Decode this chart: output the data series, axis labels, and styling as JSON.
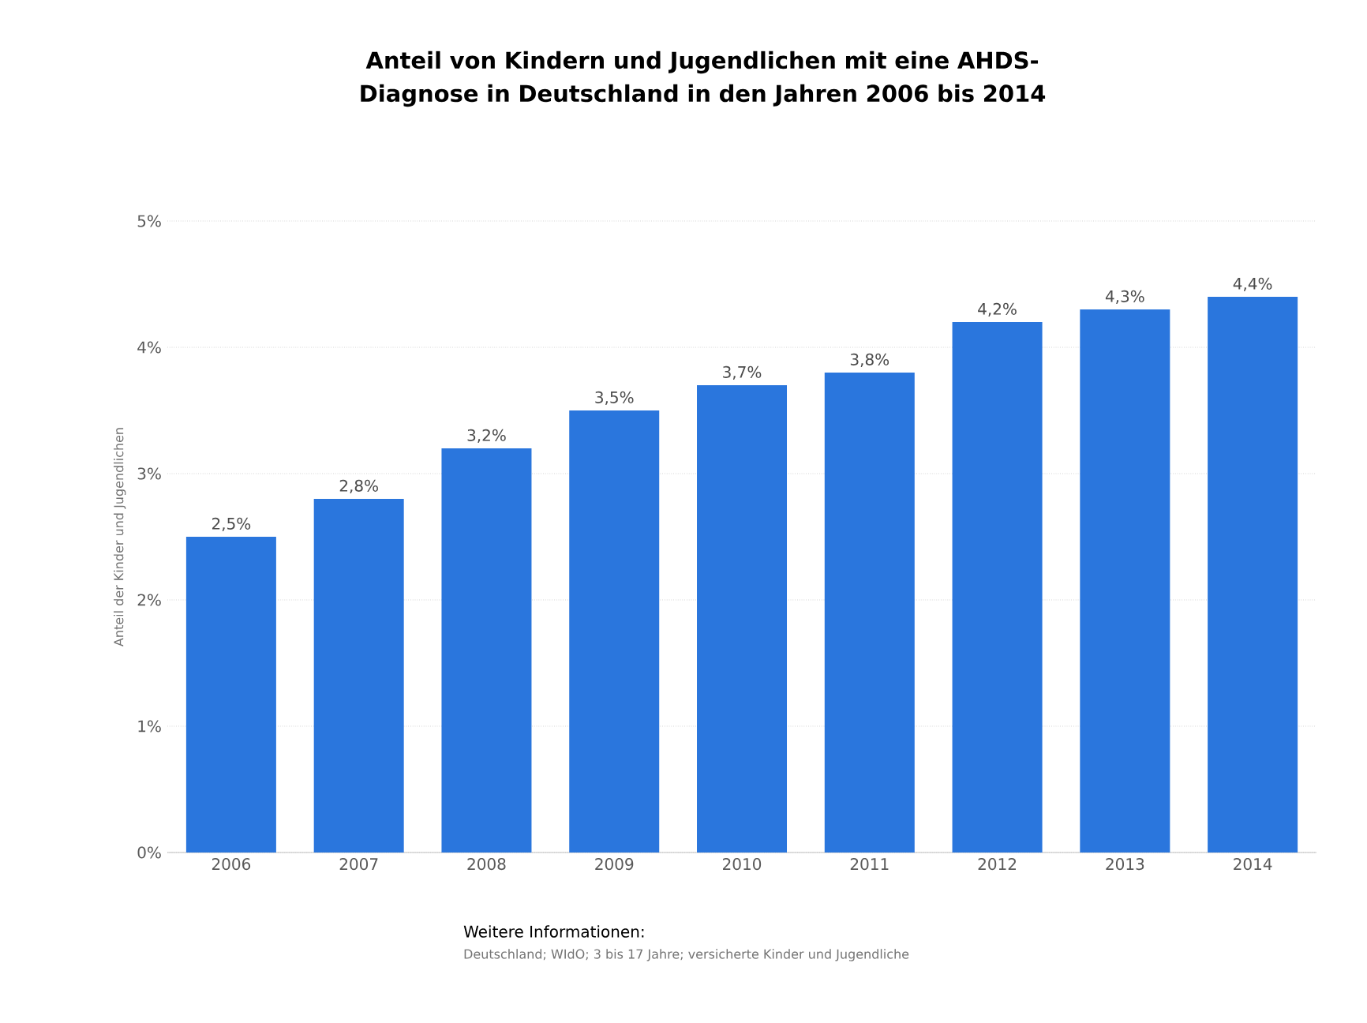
{
  "chart_data": {
    "type": "bar",
    "title": "Anteil von Kindern und Jugendlichen mit eine AHDS-Diagnose in Deutschland in den Jahren 2006 bis 2014",
    "ylabel": "Anteil der Kinder und Jugendlichen",
    "categories": [
      "2006",
      "2007",
      "2008",
      "2009",
      "2010",
      "2011",
      "2012",
      "2013",
      "2014"
    ],
    "values": [
      2.5,
      2.8,
      3.2,
      3.5,
      3.7,
      3.8,
      4.2,
      4.3,
      4.4
    ],
    "value_labels": [
      "2,5%",
      "2,8%",
      "3,2%",
      "3,5%",
      "3,7%",
      "3,8%",
      "4,2%",
      "4,3%",
      "4,4%"
    ],
    "color": "#2a76dd",
    "ylim": [
      0,
      5
    ],
    "yticks": [
      {
        "value": 0,
        "label": "0%"
      },
      {
        "value": 1,
        "label": "1%"
      },
      {
        "value": 2,
        "label": "2%"
      },
      {
        "value": 3,
        "label": "3%"
      },
      {
        "value": 4,
        "label": "4%"
      },
      {
        "value": 5,
        "label": "5%"
      }
    ],
    "grid": "y",
    "annotations": [
      "Weitere Informationen:",
      "Deutschland; WIdO; 3 bis 17 Jahre; versicherte Kinder und Jugendliche"
    ]
  }
}
